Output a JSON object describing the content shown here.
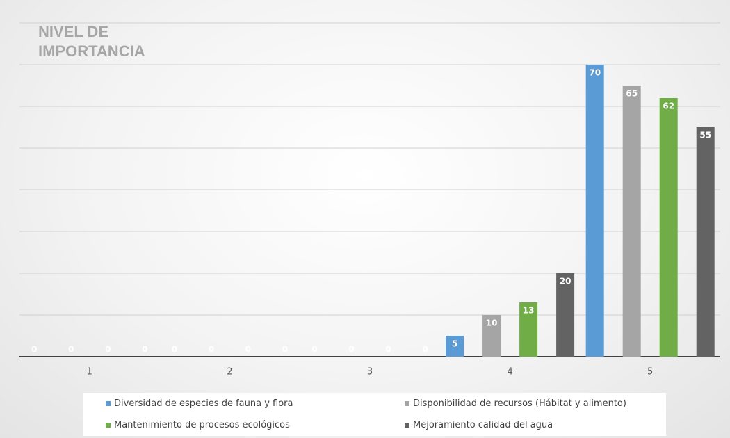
{
  "chart_data": {
    "type": "bar",
    "title": "NIVEL DE IMPORTANCIA",
    "categories": [
      "1",
      "2",
      "3",
      "4",
      "5"
    ],
    "series": [
      {
        "name": "Diversidad de especies de fauna y flora",
        "color": "#5b9bd5",
        "values": [
          0,
          0,
          0,
          5,
          70
        ]
      },
      {
        "name": "Disponibilidad de recursos (Hábitat y alimento)",
        "color": "#a5a5a5",
        "values": [
          0,
          0,
          0,
          10,
          65
        ]
      },
      {
        "name": "Mantenimiento de procesos ecológicos",
        "color": "#70ad47",
        "values": [
          0,
          0,
          0,
          13,
          62
        ]
      },
      {
        "name": "Mejoramiento calidad del agua",
        "color": "#636363",
        "values": [
          0,
          0,
          0,
          20,
          55
        ]
      }
    ],
    "ylim": [
      0,
      80
    ],
    "yticks": [
      0,
      10,
      20,
      30,
      40,
      50,
      60,
      70,
      80
    ],
    "grid": true
  }
}
